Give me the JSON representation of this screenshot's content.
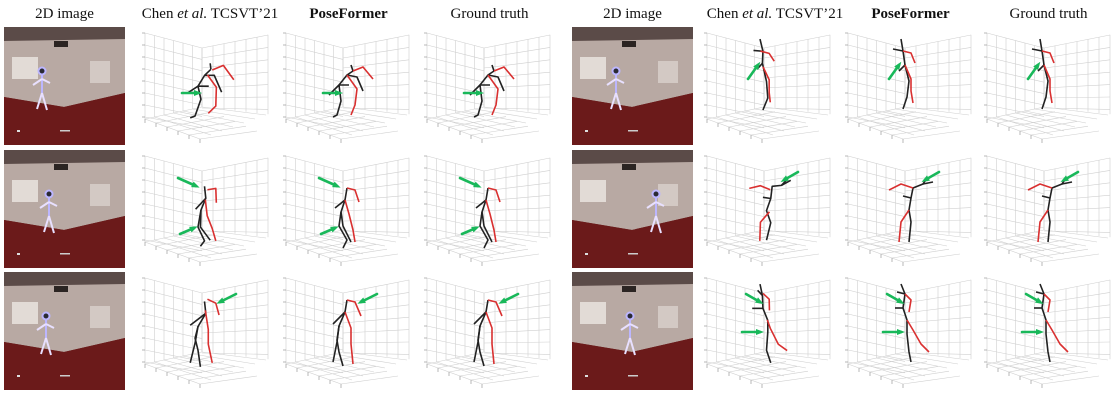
{
  "headers": [
    {
      "id": "h1",
      "text": "2D image"
    },
    {
      "id": "h2",
      "text": "Chen et al. TCSVT’21",
      "prefix": "Chen ",
      "italic": "et al.",
      "suffix": " TCSVT’21"
    },
    {
      "id": "h3",
      "text": "PoseFormer"
    },
    {
      "id": "h4",
      "text": "Ground truth"
    },
    {
      "id": "h5",
      "text": "2D image"
    },
    {
      "id": "h6",
      "text": "Chen et al. TCSVT’21",
      "prefix": "Chen ",
      "italic": "et al.",
      "suffix": " TCSVT’21"
    },
    {
      "id": "h7",
      "text": "PoseFormer"
    },
    {
      "id": "h8",
      "text": "Ground truth"
    }
  ],
  "colors": {
    "left_limb": "#222222",
    "right_limb": "#d93030",
    "arrow": "#19b85a",
    "grid": "#cfcfcf",
    "room_wall": "#b8a9a3",
    "room_floor": "#5a1616"
  },
  "icons": [
    "green-arrow-icon"
  ]
}
